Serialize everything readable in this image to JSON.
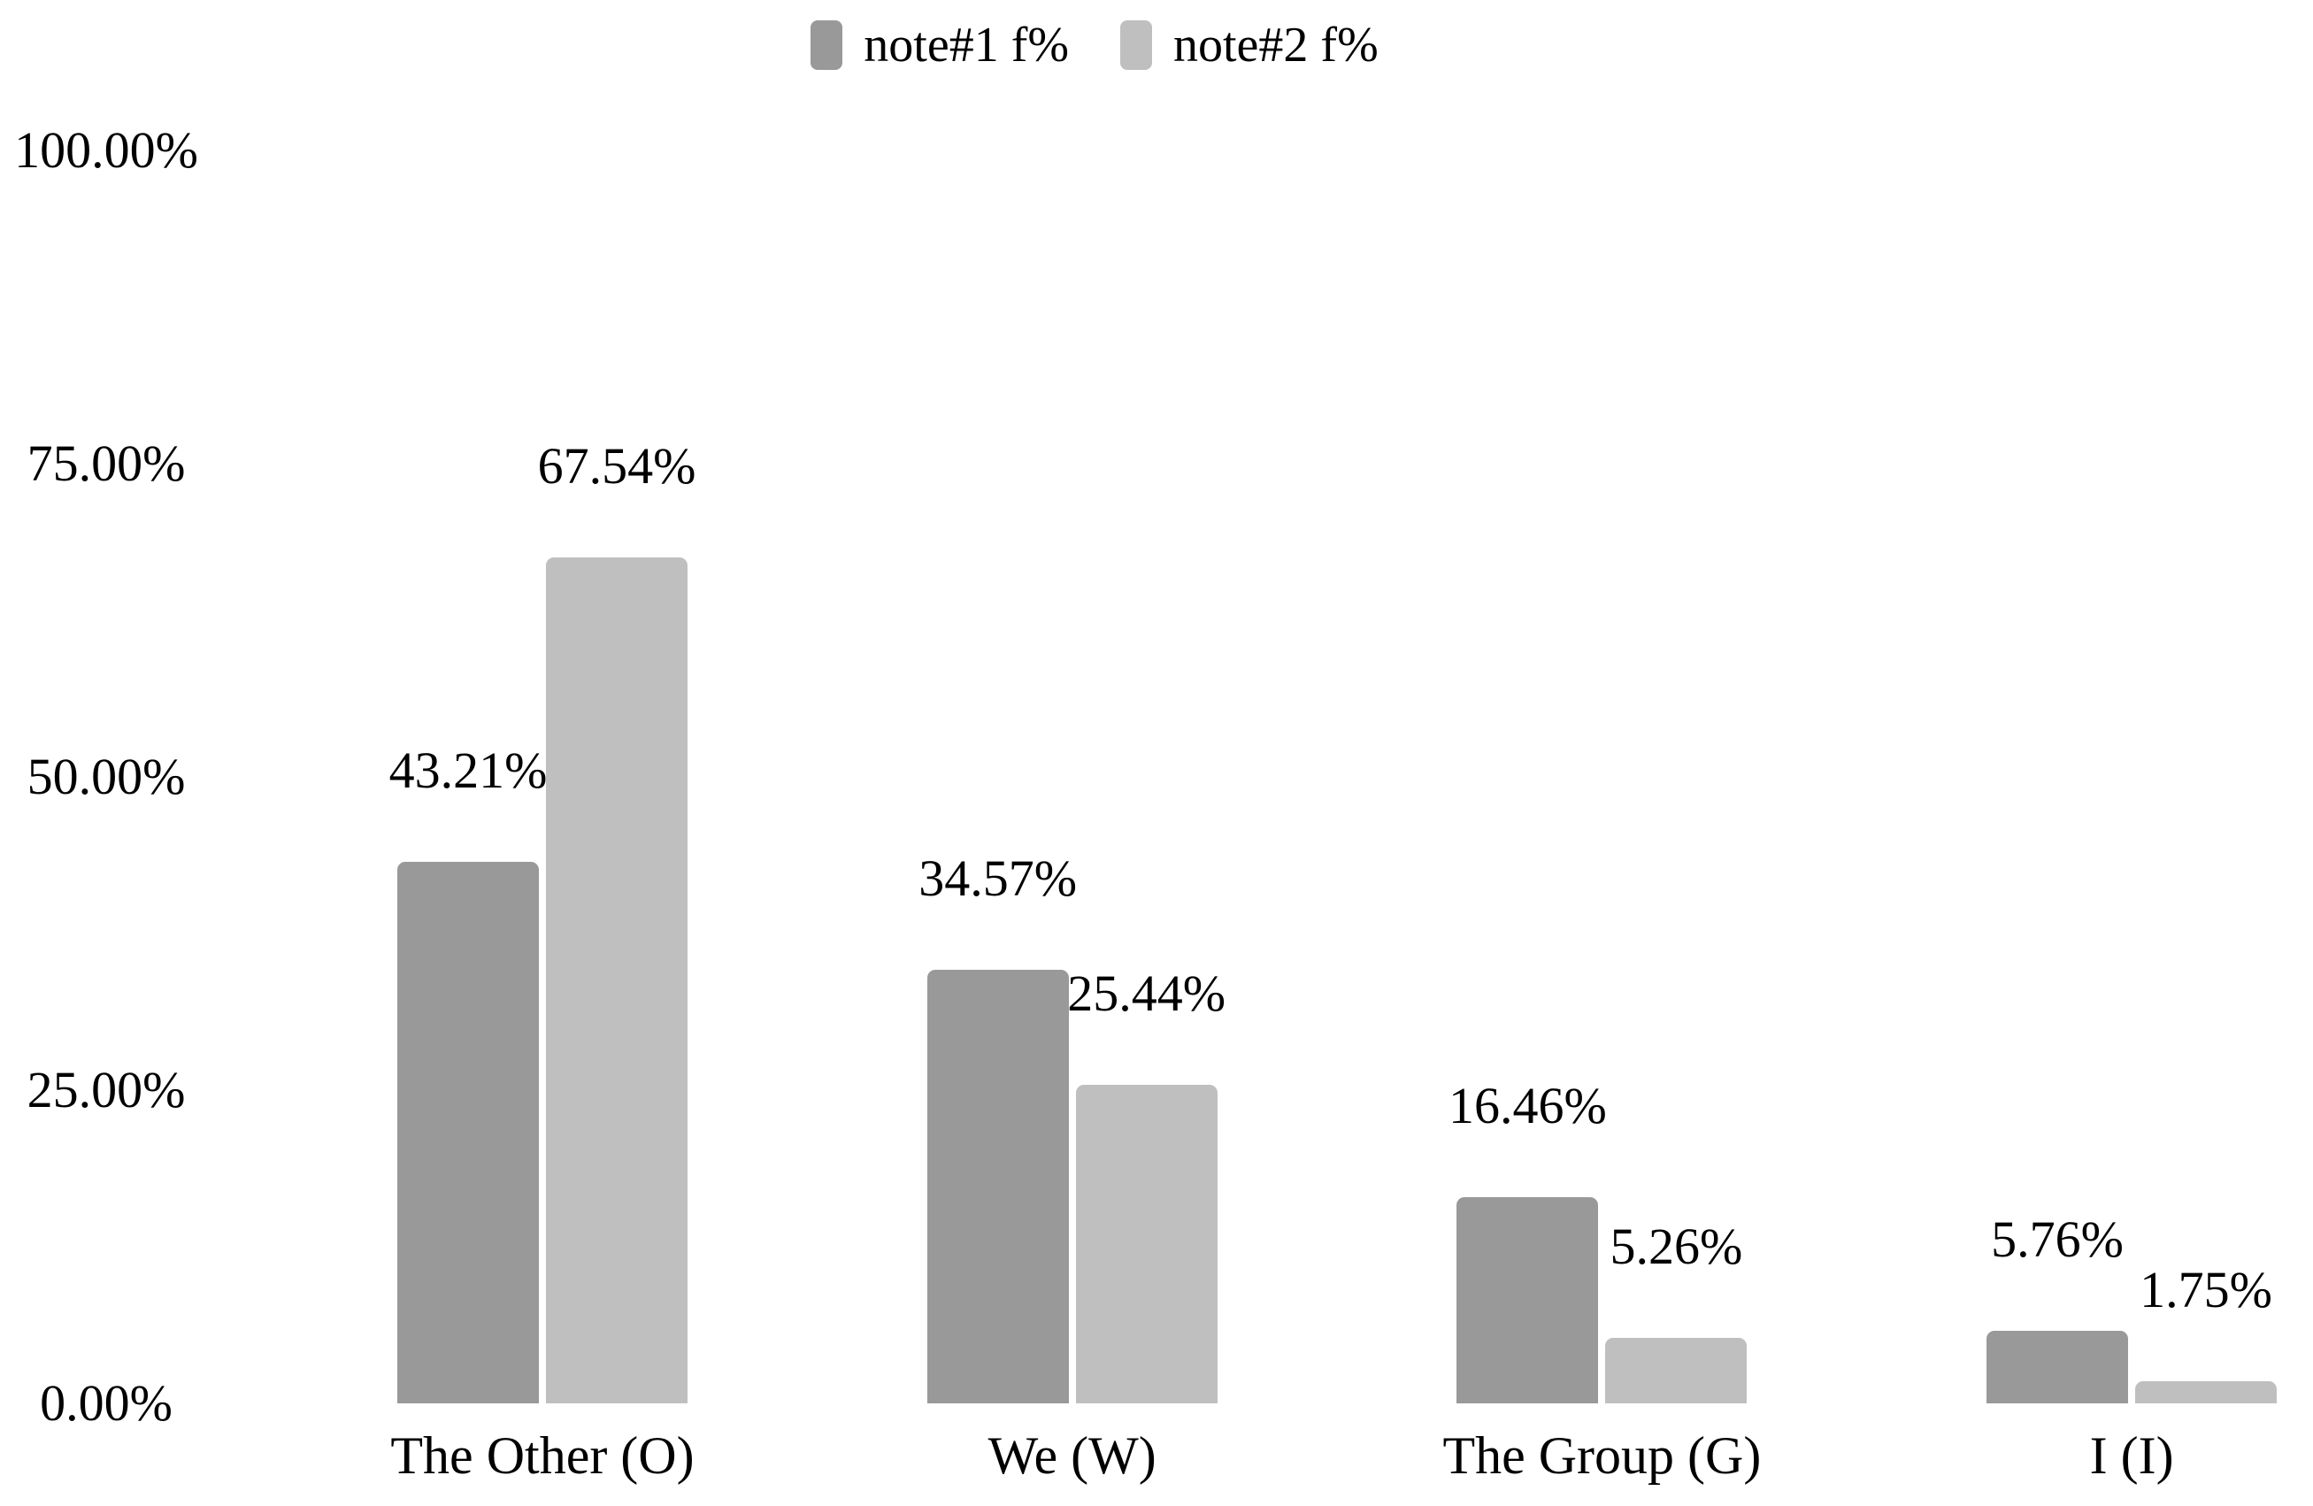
{
  "legend": {
    "position": "top"
  },
  "chart_data": {
    "type": "bar",
    "title": "",
    "xlabel": "",
    "ylabel": "",
    "categories": [
      "The Other (O)",
      "We (W)",
      "The Group (G)",
      "I (I)"
    ],
    "series": [
      {
        "name": "note#1 f%",
        "color": "#999999",
        "values": [
          43.21,
          34.57,
          16.46,
          5.76
        ]
      },
      {
        "name": "note#2 f%",
        "color": "#bfbfbf",
        "values": [
          67.54,
          25.44,
          5.26,
          1.75
        ]
      }
    ],
    "data_labels": [
      [
        "43.21%",
        "34.57%",
        "16.46%",
        "5.76%"
      ],
      [
        "67.54%",
        "25.44%",
        "5.26%",
        "1.75%"
      ]
    ],
    "yticks": [
      "100.00%",
      "75.00%",
      "50.00%",
      "25.00%",
      "0.00%"
    ],
    "ytick_values": [
      100,
      75,
      50,
      25,
      0
    ],
    "ylim": [
      0,
      100
    ],
    "grid": false,
    "axis_lines": false,
    "legend_position": "top-center",
    "text_color": "#000000",
    "background_color": "#ffffff"
  }
}
